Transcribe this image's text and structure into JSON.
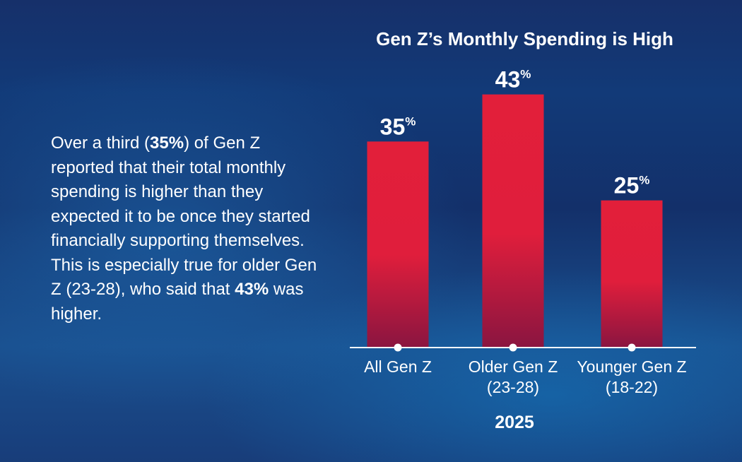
{
  "narrative": {
    "p1": "Over a third (",
    "b1": "35%",
    "p2": ") of Gen Z reported that their total monthly spending is higher than they expected it to be once they started financially supporting themselves. This is especially true for older Gen Z (23-28), who said that ",
    "b2": "43%",
    "p3": " was higher."
  },
  "chart_data": {
    "type": "bar",
    "title": "Gen Z’s Monthly Spending is High",
    "categories": [
      [
        "All Gen Z"
      ],
      [
        "Older Gen Z",
        "(23-28)"
      ],
      [
        "Younger Gen Z",
        "(18-22)"
      ]
    ],
    "values": [
      35,
      43,
      25
    ],
    "value_suffix": "%",
    "xlabel": "2025",
    "ylabel": "",
    "ylim": [
      0,
      48
    ],
    "grid": false,
    "colors": {
      "bar_top": "#e21f3a",
      "bar_mid": "#e01e3c",
      "bar_bottom": "#8a1540",
      "axis": "#ffffff"
    }
  }
}
